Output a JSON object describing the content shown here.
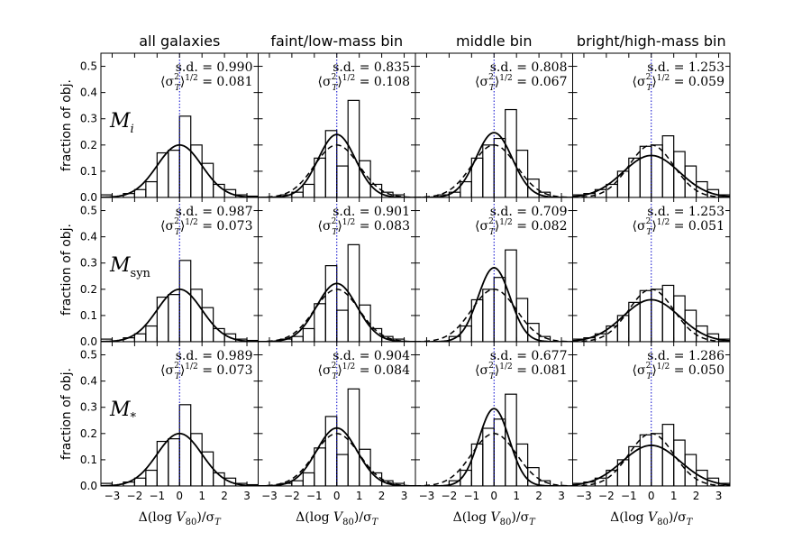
{
  "chart_data": {
    "type": "bar",
    "description_of_grid": "3 rows x 4 columns of histograms with Gaussian fits",
    "column_titles": [
      "all galaxies",
      "faint/low-mass bin",
      "middle bin",
      "bright/high-mass bin"
    ],
    "row_labels": [
      {
        "base": "M",
        "sub": "i"
      },
      {
        "base": "M",
        "sub": "syn"
      },
      {
        "base": "M",
        "sub": "*"
      }
    ],
    "ylabel": "fraction of obj.",
    "xlabel": {
      "prefix": "Δ(log ",
      "var": "V",
      "sub": "80",
      "suffix": ")/σ",
      "suffix_sub": "T"
    },
    "xlim": [
      -3.5,
      3.5
    ],
    "ylim": [
      0,
      0.55
    ],
    "xticks": [
      -3,
      -2,
      -1,
      0,
      1,
      2,
      3
    ],
    "yticks": [
      0.0,
      0.1,
      0.2,
      0.3,
      0.4,
      0.5
    ],
    "bin_edges": [
      -3.5,
      -3.0,
      -2.5,
      -2.0,
      -1.5,
      -1.0,
      -0.5,
      0.0,
      0.5,
      1.0,
      1.5,
      2.0,
      2.5,
      3.0,
      3.5
    ],
    "stat_labels": {
      "sd": "s.d. = ",
      "rms": "⟨σ²_T⟩^{1/2} = "
    },
    "panels": [
      {
        "row": 0,
        "col": 0,
        "sd": "0.990",
        "rms": "0.081",
        "hist": [
          0.01,
          0.0,
          0.015,
          0.03,
          0.06,
          0.17,
          0.18,
          0.31,
          0.2,
          0.13,
          0.05,
          0.03,
          0.01,
          0.005
        ],
        "solid_sigma": 1.0,
        "solid_amp": 0.2,
        "dashed_sigma": null,
        "dashed_amp": null
      },
      {
        "row": 0,
        "col": 1,
        "sd": "0.835",
        "rms": "0.108",
        "hist": [
          0.0,
          0.0,
          0.01,
          0.02,
          0.05,
          0.15,
          0.255,
          0.12,
          0.37,
          0.14,
          0.05,
          0.02,
          0.01,
          0.0
        ],
        "solid_sigma": 0.835,
        "solid_amp": 0.24,
        "dashed_sigma": 1.0,
        "dashed_amp": 0.2
      },
      {
        "row": 0,
        "col": 2,
        "sd": "0.808",
        "rms": "0.067",
        "hist": [
          0.0,
          0.0,
          0.01,
          0.02,
          0.06,
          0.15,
          0.2,
          0.225,
          0.335,
          0.18,
          0.07,
          0.02,
          0.0,
          0.0
        ],
        "solid_sigma": 0.808,
        "solid_amp": 0.247,
        "dashed_sigma": 1.0,
        "dashed_amp": 0.2
      },
      {
        "row": 0,
        "col": 3,
        "sd": "1.253",
        "rms": "0.059",
        "hist": [
          0.01,
          0.015,
          0.03,
          0.05,
          0.1,
          0.15,
          0.195,
          0.2,
          0.235,
          0.175,
          0.12,
          0.06,
          0.03,
          0.01
        ],
        "solid_sigma": 1.253,
        "solid_amp": 0.16,
        "dashed_sigma": 1.0,
        "dashed_amp": 0.2
      },
      {
        "row": 1,
        "col": 0,
        "sd": "0.987",
        "rms": "0.073",
        "hist": [
          0.01,
          0.0,
          0.015,
          0.03,
          0.06,
          0.17,
          0.18,
          0.31,
          0.2,
          0.13,
          0.05,
          0.03,
          0.01,
          0.005
        ],
        "solid_sigma": 1.0,
        "solid_amp": 0.2,
        "dashed_sigma": null,
        "dashed_amp": null
      },
      {
        "row": 1,
        "col": 1,
        "sd": "0.901",
        "rms": "0.083",
        "hist": [
          0.0,
          0.0,
          0.01,
          0.02,
          0.05,
          0.145,
          0.29,
          0.12,
          0.37,
          0.14,
          0.05,
          0.02,
          0.01,
          0.0
        ],
        "solid_sigma": 0.901,
        "solid_amp": 0.222,
        "dashed_sigma": 1.0,
        "dashed_amp": 0.2
      },
      {
        "row": 1,
        "col": 2,
        "sd": "0.709",
        "rms": "0.082",
        "hist": [
          0.0,
          0.0,
          0.0,
          0.02,
          0.06,
          0.16,
          0.2,
          0.245,
          0.35,
          0.165,
          0.07,
          0.02,
          0.0,
          0.0
        ],
        "solid_sigma": 0.709,
        "solid_amp": 0.282,
        "dashed_sigma": 1.0,
        "dashed_amp": 0.2
      },
      {
        "row": 1,
        "col": 3,
        "sd": "1.253",
        "rms": "0.051",
        "hist": [
          0.01,
          0.015,
          0.03,
          0.06,
          0.1,
          0.15,
          0.195,
          0.2,
          0.215,
          0.175,
          0.12,
          0.06,
          0.03,
          0.01
        ],
        "solid_sigma": 1.253,
        "solid_amp": 0.16,
        "dashed_sigma": 1.0,
        "dashed_amp": 0.2
      },
      {
        "row": 2,
        "col": 0,
        "sd": "0.989",
        "rms": "0.073",
        "hist": [
          0.01,
          0.0,
          0.015,
          0.03,
          0.06,
          0.17,
          0.18,
          0.31,
          0.2,
          0.13,
          0.05,
          0.03,
          0.01,
          0.005
        ],
        "solid_sigma": 1.0,
        "solid_amp": 0.2,
        "dashed_sigma": null,
        "dashed_amp": null
      },
      {
        "row": 2,
        "col": 1,
        "sd": "0.904",
        "rms": "0.084",
        "hist": [
          0.0,
          0.0,
          0.01,
          0.02,
          0.05,
          0.145,
          0.265,
          0.12,
          0.37,
          0.14,
          0.05,
          0.02,
          0.01,
          0.0
        ],
        "solid_sigma": 0.904,
        "solid_amp": 0.221,
        "dashed_sigma": 1.0,
        "dashed_amp": 0.2
      },
      {
        "row": 2,
        "col": 2,
        "sd": "0.677",
        "rms": "0.081",
        "hist": [
          0.0,
          0.0,
          0.0,
          0.02,
          0.06,
          0.16,
          0.22,
          0.255,
          0.35,
          0.16,
          0.07,
          0.02,
          0.0,
          0.0
        ],
        "solid_sigma": 0.677,
        "solid_amp": 0.295,
        "dashed_sigma": 1.0,
        "dashed_amp": 0.2
      },
      {
        "row": 2,
        "col": 3,
        "sd": "1.286",
        "rms": "0.050",
        "hist": [
          0.01,
          0.015,
          0.03,
          0.06,
          0.1,
          0.15,
          0.195,
          0.2,
          0.235,
          0.175,
          0.12,
          0.06,
          0.03,
          0.01
        ],
        "solid_sigma": 1.286,
        "solid_amp": 0.155,
        "dashed_sigma": 1.0,
        "dashed_amp": 0.2
      }
    ],
    "colors": {
      "bars": "#000000",
      "fit": "#000000",
      "zero_line": "#0000cc",
      "background": "#ffffff"
    }
  }
}
